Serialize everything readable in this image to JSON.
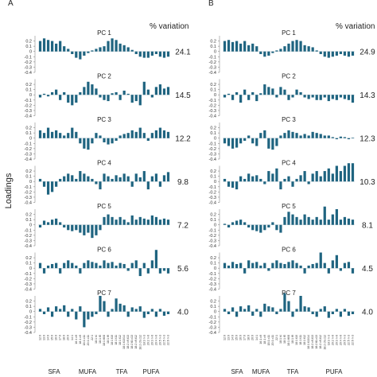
{
  "figure": {
    "ylabel": "Loadings",
    "variation_header": "% variation",
    "bar_color": "#1f6480",
    "groups": [
      "SFA",
      "MUFA",
      "TFA",
      "PUFA"
    ],
    "fatty_acids": [
      "12:0",
      "13:0",
      "14:0",
      "15:0",
      "16:0",
      "17:0",
      "18:0",
      "20:0",
      "14:1",
      "16:1 c9",
      "18:1 c9",
      "18:1 c11",
      "20:1 c11",
      "22:1",
      "18:1 t4",
      "18:1 t5",
      "18:1 t6/8",
      "18:1 t9",
      "18:1 t10",
      "18:1 t11",
      "18:1 t12",
      "18:1 t13/14",
      "18:2 c9,t13",
      "18:2 t8,c13",
      "18:2 c9,t12",
      "18:2 c9,c12",
      "18:3 n-3",
      "20:2 n-6",
      "20:3 n-6",
      "20:4 n-6",
      "20:5 n-3",
      "22:5 n-3",
      "22:6 n-3"
    ]
  },
  "chart_data": [
    {
      "panel": "A",
      "type": "bar",
      "ylim": [
        -0.4,
        0.3
      ],
      "yticks": [
        "0.2",
        "0.1",
        "0",
        "-0.1",
        "-0.2",
        "-0.3",
        "-0.4"
      ],
      "series": [
        {
          "name": "PC 1",
          "variation": "24.1",
          "values": [
            0.2,
            0.25,
            0.22,
            0.2,
            0.15,
            0.2,
            0.1,
            0.05,
            -0.05,
            -0.12,
            -0.15,
            -0.08,
            -0.03,
            0.02,
            0.05,
            0.08,
            0.1,
            0.2,
            0.25,
            0.22,
            0.15,
            0.12,
            0.08,
            0.03,
            -0.05,
            -0.1,
            -0.12,
            -0.12,
            -0.08,
            -0.05,
            -0.1,
            -0.12,
            -0.1
          ]
        },
        {
          "name": "PC 2",
          "variation": "14.5",
          "values": [
            -0.05,
            0.02,
            -0.03,
            0.05,
            0.1,
            -0.1,
            0.05,
            -0.15,
            -0.2,
            -0.15,
            0.05,
            0.15,
            0.25,
            0.2,
            0.12,
            -0.05,
            -0.1,
            -0.12,
            0.03,
            0.05,
            -0.1,
            0.08,
            0.02,
            -0.15,
            -0.12,
            -0.2,
            0.25,
            0.1,
            -0.05,
            0.15,
            0.2,
            0.12,
            0.15
          ]
        },
        {
          "name": "PC 3",
          "variation": "12.2",
          "values": [
            0.15,
            0.1,
            0.2,
            0.12,
            0.15,
            0.1,
            0.05,
            0.1,
            0.2,
            0.12,
            -0.1,
            -0.2,
            -0.22,
            -0.1,
            0.1,
            0.05,
            -0.08,
            -0.12,
            -0.1,
            -0.05,
            0.05,
            0.08,
            0.1,
            0.15,
            0.12,
            0.2,
            0.1,
            -0.05,
            0.1,
            0.15,
            0.2,
            0.15,
            0.12
          ]
        },
        {
          "name": "PC 4",
          "variation": "9.8",
          "values": [
            0.05,
            -0.1,
            -0.25,
            -0.2,
            -0.1,
            0.05,
            0.1,
            0.15,
            0.12,
            0.05,
            0.2,
            0.15,
            0.1,
            0.05,
            -0.05,
            -0.15,
            0.15,
            0.1,
            0.05,
            0.12,
            0.08,
            0.15,
            0.1,
            -0.1,
            0.15,
            0.08,
            0.2,
            -0.15,
            0.1,
            0.15,
            -0.1,
            0.12,
            0.18
          ]
        },
        {
          "name": "PC 5",
          "variation": "7.2",
          "values": [
            -0.05,
            0.08,
            0.05,
            0.1,
            0.12,
            0.05,
            -0.05,
            -0.1,
            -0.12,
            -0.1,
            -0.15,
            -0.2,
            -0.15,
            -0.25,
            -0.2,
            -0.1,
            0.15,
            0.2,
            0.15,
            0.1,
            0.15,
            0.1,
            0.05,
            0.18,
            0.1,
            0.15,
            0.12,
            0.1,
            0.18,
            0.15,
            0.1,
            0.12,
            0.1
          ]
        },
        {
          "name": "PC 6",
          "variation": "5.6",
          "values": [
            0.1,
            -0.1,
            0.05,
            0.08,
            0.1,
            -0.1,
            0.1,
            0.15,
            0.1,
            0.05,
            -0.1,
            0.1,
            0.15,
            0.12,
            0.1,
            0.05,
            0.15,
            0.1,
            0.12,
            0.05,
            0.1,
            0.08,
            -0.05,
            0.1,
            0.15,
            -0.15,
            0.1,
            -0.1,
            0.15,
            0.35,
            -0.1,
            -0.05,
            -0.1
          ]
        },
        {
          "name": "PC 7",
          "variation": "4.0",
          "values": [
            0.05,
            -0.05,
            0.08,
            -0.1,
            0.1,
            0.05,
            0.12,
            -0.1,
            0.05,
            -0.15,
            0.1,
            -0.3,
            -0.15,
            -0.1,
            -0.05,
            0.3,
            0.2,
            -0.1,
            0.05,
            0.25,
            0.15,
            0.12,
            -0.1,
            0.08,
            0.05,
            0.1,
            -0.12,
            -0.05,
            0.05,
            -0.1,
            0.05,
            -0.08,
            -0.05
          ]
        }
      ]
    },
    {
      "panel": "B",
      "type": "bar",
      "ylim": [
        -0.4,
        0.3
      ],
      "yticks": [
        "0.2",
        "0.1",
        "0",
        "-0.1",
        "-0.2",
        "-0.3",
        "-0.4"
      ],
      "series": [
        {
          "name": "PC 1",
          "variation": "24.9",
          "values": [
            0.2,
            0.22,
            0.18,
            0.2,
            0.15,
            0.2,
            0.12,
            0.15,
            0.1,
            -0.05,
            -0.1,
            -0.08,
            -0.03,
            0.02,
            0.05,
            0.1,
            0.15,
            0.2,
            0.22,
            0.2,
            0.12,
            0.1,
            0.08,
            0.02,
            -0.05,
            -0.1,
            -0.12,
            -0.1,
            -0.08,
            -0.05,
            -0.08,
            -0.1,
            -0.08
          ]
        },
        {
          "name": "PC 2",
          "variation": "14.3",
          "values": [
            -0.05,
            0.02,
            -0.1,
            0.05,
            -0.15,
            0.1,
            -0.1,
            0.05,
            -0.12,
            0.03,
            0.2,
            0.15,
            0.12,
            -0.05,
            0.15,
            0.1,
            -0.1,
            -0.05,
            0.1,
            0.05,
            -0.05,
            -0.08,
            -0.05,
            -0.1,
            -0.1,
            -0.05,
            -0.12,
            -0.08,
            -0.1,
            -0.05,
            -0.08,
            -0.1,
            -0.15
          ]
        },
        {
          "name": "PC 3",
          "variation": "12.3",
          "values": [
            -0.1,
            -0.15,
            -0.2,
            -0.18,
            -0.1,
            -0.05,
            0.05,
            -0.1,
            -0.15,
            0.1,
            0.15,
            -0.2,
            -0.22,
            -0.15,
            0.05,
            0.1,
            0.15,
            0.12,
            0.1,
            0.05,
            0.08,
            0.05,
            0.12,
            0.1,
            0.08,
            0.05,
            0.05,
            0.02,
            -0.02,
            0.03,
            0.02,
            -0.02,
            0.01
          ]
        },
        {
          "name": "PC 4",
          "variation": "10.3",
          "values": [
            0.05,
            -0.1,
            -0.12,
            -0.15,
            0.1,
            0.05,
            0.15,
            0.1,
            0.12,
            0.05,
            -0.05,
            0.2,
            0.15,
            0.25,
            -0.15,
            0.05,
            0.1,
            -0.1,
            0.05,
            0.12,
            0.2,
            -0.05,
            0.15,
            0.2,
            0.1,
            0.2,
            0.25,
            0.15,
            0.3,
            0.2,
            0.3,
            0.35,
            0.35
          ]
        },
        {
          "name": "PC 5",
          "variation": "8.1",
          "values": [
            0.02,
            -0.05,
            0.05,
            0.08,
            0.1,
            0.05,
            -0.05,
            -0.1,
            -0.12,
            -0.15,
            -0.1,
            -0.05,
            0.05,
            -0.1,
            -0.15,
            0.15,
            0.25,
            0.2,
            0.15,
            0.1,
            0.2,
            0.15,
            0.1,
            0.15,
            0.1,
            0.35,
            0.1,
            0.2,
            0.3,
            0.1,
            0.15,
            0.12,
            0.1
          ]
        },
        {
          "name": "PC 6",
          "variation": "4.5",
          "values": [
            0.1,
            0.05,
            0.12,
            0.08,
            0.1,
            -0.1,
            0.15,
            0.1,
            0.12,
            0.05,
            0.1,
            -0.05,
            0.1,
            0.15,
            0.1,
            0.08,
            0.12,
            0.15,
            0.1,
            0.05,
            -0.1,
            0.05,
            0.08,
            0.1,
            0.3,
            0.1,
            -0.1,
            0.15,
            0.25,
            -0.05,
            0.1,
            0.12,
            -0.1
          ]
        },
        {
          "name": "PC 7",
          "variation": "4.0",
          "values": [
            0.05,
            -0.05,
            0.08,
            -0.1,
            0.1,
            0.05,
            0.12,
            -0.08,
            0.05,
            -0.1,
            0.15,
            0.1,
            0.08,
            -0.05,
            0.05,
            0.35,
            0.2,
            -0.1,
            0.05,
            0.3,
            0.1,
            0.08,
            -0.05,
            -0.1,
            0.05,
            0.1,
            -0.12,
            -0.05,
            0.05,
            -0.1,
            0.05,
            -0.08,
            -0.05
          ]
        }
      ]
    }
  ]
}
